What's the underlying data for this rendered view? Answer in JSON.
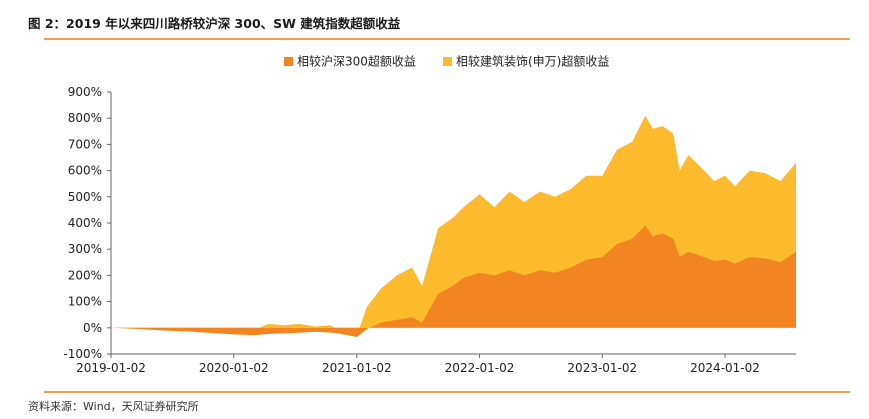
{
  "figure": {
    "title": "图 2：2019 年以来四川路桥较沪深 300、SW 建筑指数超额收益",
    "source": "资料来源：Wind，天风证券研究所"
  },
  "colors": {
    "hs300_excess": "#f28421",
    "sw_excess": "#fbbb2d",
    "rule": "#f0a050",
    "axis": "#666666"
  },
  "chart_data": {
    "type": "area",
    "stacking": "overlay",
    "legend_position": "top-center",
    "grid": false,
    "ylim": [
      -100,
      900
    ],
    "y_ticks": [
      -100,
      0,
      100,
      200,
      300,
      400,
      500,
      600,
      700,
      800,
      900
    ],
    "y_tick_labels": [
      "-100%",
      "0%",
      "100%",
      "200%",
      "300%",
      "400%",
      "500%",
      "600%",
      "700%",
      "800%",
      "900%"
    ],
    "x_range": [
      "2019-01-02",
      "2024-07-31"
    ],
    "x_ticks": [
      "2019-01-02",
      "2020-01-02",
      "2021-01-02",
      "2022-01-02",
      "2023-01-02",
      "2024-01-02"
    ],
    "x_tick_labels": [
      "2019-01-02",
      "2020-01-02",
      "2021-01-02",
      "2022-01-02",
      "2023-01-02",
      "2024-01-02"
    ],
    "xlabel": "",
    "ylabel": "",
    "series": [
      {
        "name": "相较建筑装饰(申万)超额收益",
        "color": "#fbbb2d",
        "points": [
          [
            "2019-01-02",
            0
          ],
          [
            "2019-03-01",
            -2
          ],
          [
            "2019-06-01",
            -6
          ],
          [
            "2019-09-01",
            -8
          ],
          [
            "2020-01-02",
            -12
          ],
          [
            "2020-03-01",
            -8
          ],
          [
            "2020-04-15",
            15
          ],
          [
            "2020-06-01",
            10
          ],
          [
            "2020-07-15",
            15
          ],
          [
            "2020-09-01",
            5
          ],
          [
            "2020-10-15",
            10
          ],
          [
            "2020-12-01",
            -20
          ],
          [
            "2021-01-02",
            -30
          ],
          [
            "2021-02-01",
            80
          ],
          [
            "2021-03-15",
            150
          ],
          [
            "2021-05-01",
            200
          ],
          [
            "2021-06-15",
            230
          ],
          [
            "2021-07-15",
            160
          ],
          [
            "2021-09-01",
            380
          ],
          [
            "2021-10-15",
            420
          ],
          [
            "2021-11-15",
            460
          ],
          [
            "2022-01-02",
            510
          ],
          [
            "2022-02-15",
            460
          ],
          [
            "2022-04-01",
            520
          ],
          [
            "2022-05-15",
            480
          ],
          [
            "2022-07-01",
            520
          ],
          [
            "2022-08-15",
            500
          ],
          [
            "2022-10-01",
            530
          ],
          [
            "2022-11-15",
            580
          ],
          [
            "2023-01-02",
            580
          ],
          [
            "2023-02-15",
            680
          ],
          [
            "2023-04-01",
            710
          ],
          [
            "2023-05-10",
            810
          ],
          [
            "2023-06-01",
            760
          ],
          [
            "2023-07-01",
            770
          ],
          [
            "2023-08-01",
            740
          ],
          [
            "2023-08-20",
            600
          ],
          [
            "2023-09-15",
            660
          ],
          [
            "2023-11-01",
            600
          ],
          [
            "2023-12-01",
            560
          ],
          [
            "2024-01-02",
            580
          ],
          [
            "2024-02-01",
            540
          ],
          [
            "2024-03-15",
            600
          ],
          [
            "2024-05-01",
            590
          ],
          [
            "2024-06-15",
            560
          ],
          [
            "2024-07-31",
            630
          ]
        ]
      },
      {
        "name": "相较沪深300超额收益",
        "color": "#f28421",
        "points": [
          [
            "2019-01-02",
            0
          ],
          [
            "2019-03-01",
            -3
          ],
          [
            "2019-06-01",
            -10
          ],
          [
            "2019-09-01",
            -15
          ],
          [
            "2020-01-02",
            -25
          ],
          [
            "2020-03-01",
            -28
          ],
          [
            "2020-05-01",
            -22
          ],
          [
            "2020-07-01",
            -20
          ],
          [
            "2020-09-01",
            -15
          ],
          [
            "2020-11-01",
            -20
          ],
          [
            "2020-12-15",
            -30
          ],
          [
            "2021-01-02",
            -35
          ],
          [
            "2021-02-01",
            -5
          ],
          [
            "2021-03-15",
            20
          ],
          [
            "2021-05-01",
            30
          ],
          [
            "2021-06-15",
            40
          ],
          [
            "2021-07-15",
            20
          ],
          [
            "2021-09-01",
            130
          ],
          [
            "2021-10-15",
            160
          ],
          [
            "2021-11-15",
            190
          ],
          [
            "2022-01-02",
            210
          ],
          [
            "2022-02-15",
            200
          ],
          [
            "2022-04-01",
            220
          ],
          [
            "2022-05-15",
            200
          ],
          [
            "2022-07-01",
            220
          ],
          [
            "2022-08-15",
            210
          ],
          [
            "2022-10-01",
            230
          ],
          [
            "2022-11-15",
            260
          ],
          [
            "2023-01-02",
            270
          ],
          [
            "2023-02-15",
            320
          ],
          [
            "2023-04-01",
            340
          ],
          [
            "2023-05-10",
            390
          ],
          [
            "2023-06-01",
            350
          ],
          [
            "2023-07-01",
            360
          ],
          [
            "2023-08-01",
            340
          ],
          [
            "2023-08-20",
            270
          ],
          [
            "2023-09-15",
            290
          ],
          [
            "2023-11-01",
            270
          ],
          [
            "2023-12-01",
            255
          ],
          [
            "2024-01-02",
            260
          ],
          [
            "2024-02-01",
            245
          ],
          [
            "2024-03-15",
            270
          ],
          [
            "2024-05-01",
            265
          ],
          [
            "2024-06-15",
            250
          ],
          [
            "2024-07-31",
            290
          ]
        ]
      }
    ],
    "legend": [
      {
        "name": "相较沪深300超额收益",
        "color": "#f28421"
      },
      {
        "name": "相较建筑装饰(申万)超额收益",
        "color": "#fbbb2d"
      }
    ]
  }
}
